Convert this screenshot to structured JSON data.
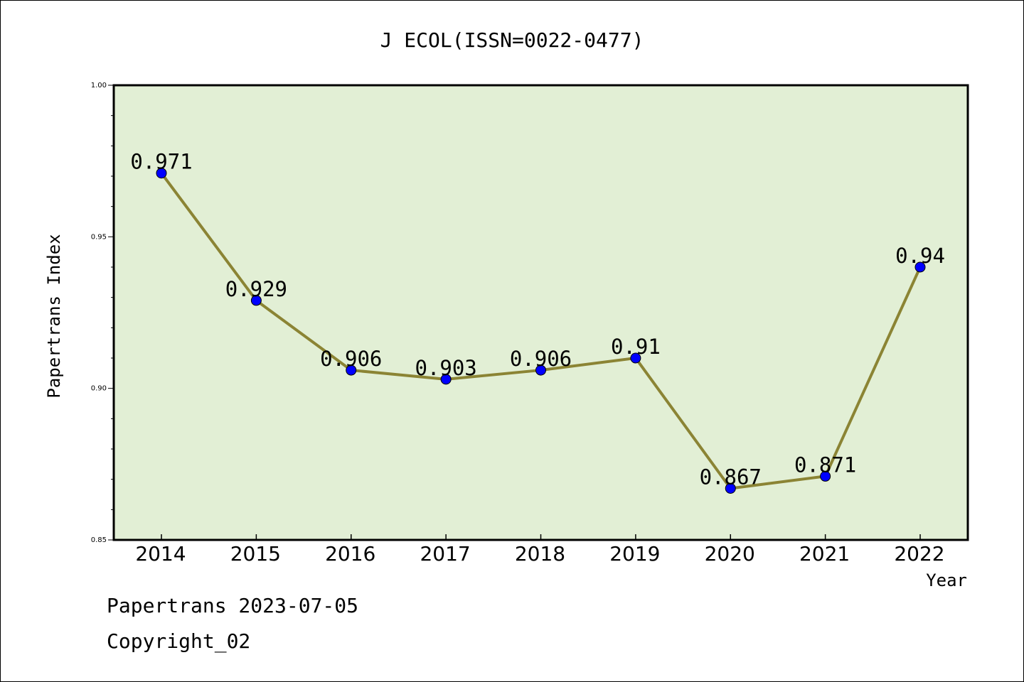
{
  "chart_data": {
    "type": "line",
    "title": "J ECOL(ISSN=0022-0477)",
    "xlabel": "Year",
    "ylabel": "Papertrans Index",
    "categories": [
      "2014",
      "2015",
      "2016",
      "2017",
      "2018",
      "2019",
      "2020",
      "2021",
      "2022"
    ],
    "values": [
      0.971,
      0.929,
      0.906,
      0.903,
      0.906,
      0.91,
      0.867,
      0.871,
      0.94
    ],
    "data_labels": [
      "0.971",
      "0.929",
      "0.906",
      "0.903",
      "0.906",
      "0.91",
      "0.867",
      "0.871",
      "0.94"
    ],
    "ylim": [
      0.85,
      1.0
    ],
    "y_ticks": [
      "0.85",
      "0.90",
      "0.95",
      "1.00"
    ],
    "grid": false,
    "colors": {
      "plot_background": "#e2efd5",
      "line": "#8b8434",
      "marker": "#0000ff"
    }
  },
  "footer": {
    "line1": "Papertrans 2023-07-05",
    "line2": "Copyright_02"
  }
}
